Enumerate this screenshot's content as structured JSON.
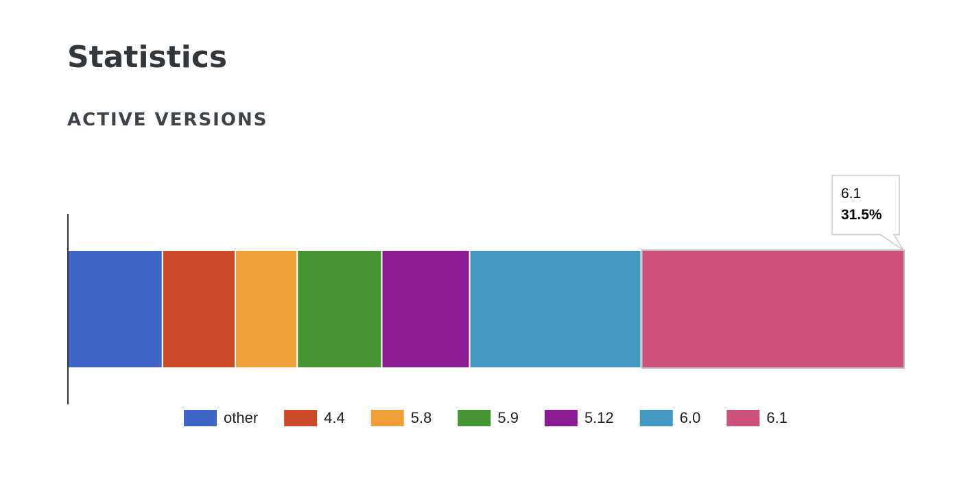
{
  "page": {
    "title": "Statistics",
    "section_title": "ACTIVE VERSIONS"
  },
  "chart_data": {
    "type": "bar",
    "orientation": "horizontal",
    "stacked": true,
    "unit": "%",
    "series": [
      {
        "name": "other",
        "value": 11.3,
        "color": "#3f66c7"
      },
      {
        "name": "4.4",
        "value": 8.7,
        "color": "#cb4a28"
      },
      {
        "name": "5.8",
        "value": 7.4,
        "color": "#f0a03a"
      },
      {
        "name": "5.9",
        "value": 10.1,
        "color": "#469332"
      },
      {
        "name": "5.12",
        "value": 10.5,
        "color": "#8b1a93"
      },
      {
        "name": "6.0",
        "value": 20.5,
        "color": "#4499c4"
      },
      {
        "name": "6.1",
        "value": 31.5,
        "color": "#cc5279"
      }
    ],
    "legend_position": "bottom",
    "grid": false,
    "tooltip": {
      "label": "6.1",
      "value_text": "31.5%"
    }
  }
}
